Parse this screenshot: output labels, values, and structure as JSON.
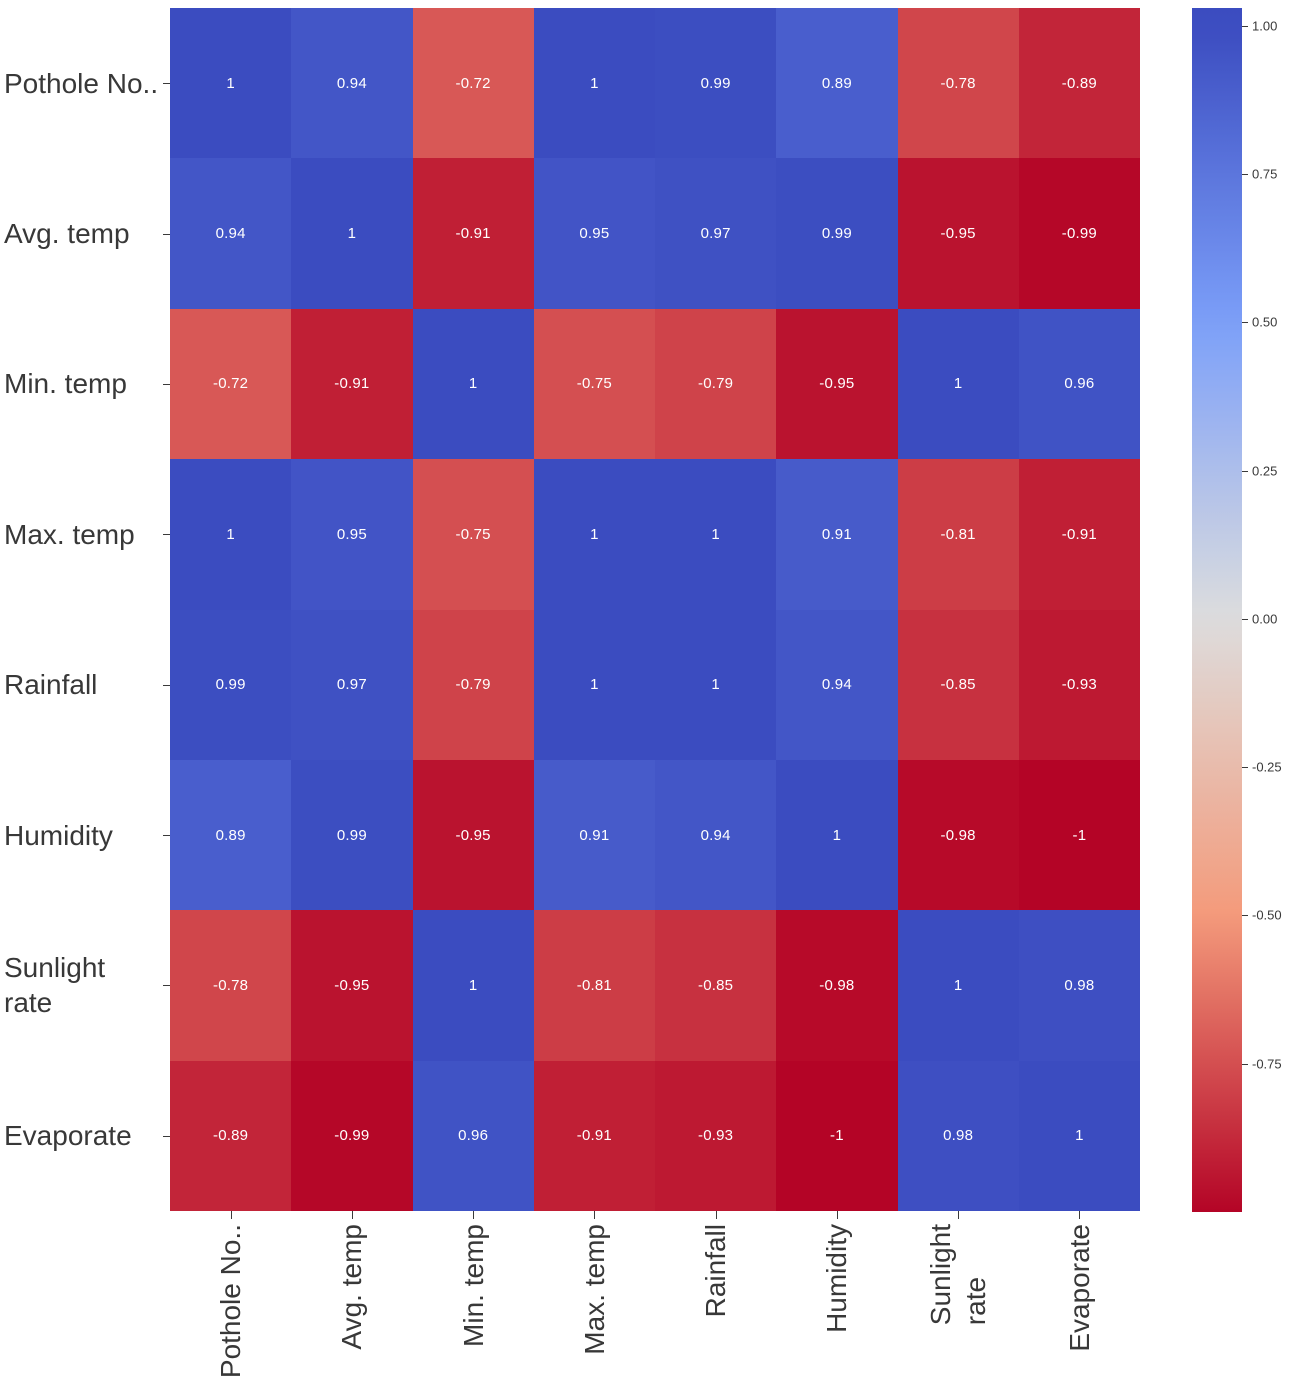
{
  "chart_data": {
    "type": "heatmap",
    "title": "",
    "categories": [
      "Pothole No..",
      "Avg. temp",
      "Min. temp",
      "Max. temp",
      "Rainfall",
      "Humidity",
      "Sunlight\nrate",
      "Evaporate"
    ],
    "matrix": [
      [
        1,
        0.94,
        -0.72,
        1,
        0.99,
        0.89,
        -0.78,
        -0.89
      ],
      [
        0.94,
        1,
        -0.91,
        0.95,
        0.97,
        0.99,
        -0.95,
        -0.99
      ],
      [
        -0.72,
        -0.91,
        1,
        -0.75,
        -0.79,
        -0.95,
        1,
        0.96
      ],
      [
        1,
        0.95,
        -0.75,
        1,
        1,
        0.91,
        -0.81,
        -0.91
      ],
      [
        0.99,
        0.97,
        -0.79,
        1,
        1,
        0.94,
        -0.85,
        -0.93
      ],
      [
        0.89,
        0.99,
        -0.95,
        0.91,
        0.94,
        1,
        -0.98,
        -1
      ],
      [
        -0.78,
        -0.95,
        1,
        -0.81,
        -0.85,
        -0.98,
        1,
        0.98
      ],
      [
        -0.89,
        -0.99,
        0.96,
        -0.91,
        -0.93,
        -1,
        0.98,
        1
      ]
    ],
    "colormap_stops": [
      "#3b4cc0",
      "#7c9ff9",
      "#dddddd",
      "#f49a7b",
      "#b40426"
    ],
    "colormap_domain": [
      1,
      0.5,
      0,
      -0.5,
      -1
    ],
    "colorbar": {
      "position": "right",
      "ticks": [
        "1.00",
        "0.75",
        "0.50",
        "0.25",
        "0.00",
        "-0.25",
        "-0.50",
        "-0.75"
      ],
      "range_top": 1.03,
      "range_bottom": -1.0
    },
    "cell_text_color": "#ffffff",
    "axis_label_color": "#383838",
    "grid": false
  }
}
